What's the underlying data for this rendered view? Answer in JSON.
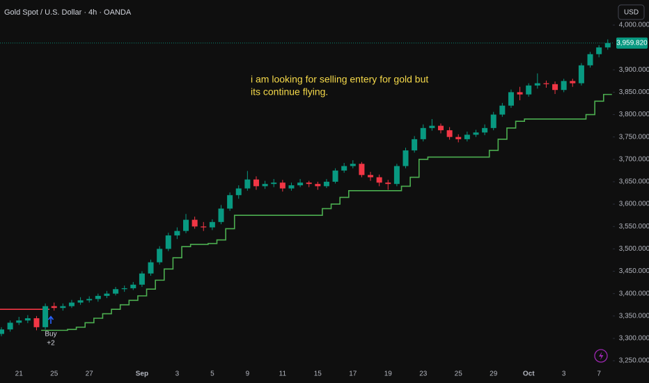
{
  "header": {
    "symbol": "Gold Spot / U.S. Dollar · 4h · OANDA",
    "currency": "USD"
  },
  "chart_data": {
    "type": "candlestick",
    "categories": [
      null,
      null,
      "21",
      null,
      null,
      null,
      "25",
      null,
      null,
      null,
      "27",
      null,
      null,
      null,
      null,
      null,
      "Sep",
      null,
      null,
      null,
      "3",
      null,
      null,
      null,
      "5",
      null,
      null,
      null,
      "9",
      null,
      null,
      null,
      "11",
      null,
      null,
      null,
      "15",
      null,
      null,
      null,
      "17",
      null,
      null,
      null,
      "19",
      null,
      null,
      null,
      "23",
      null,
      null,
      null,
      "25",
      null,
      null,
      null,
      "29",
      null,
      null,
      null,
      "Oct",
      null,
      null,
      null,
      "3",
      null,
      null,
      null,
      "7",
      null
    ],
    "open": [
      3310,
      3320,
      3335,
      3340,
      3345,
      3325,
      3372,
      3368,
      3372,
      3380,
      3385,
      3388,
      3395,
      3400,
      3410,
      3412,
      3420,
      3445,
      3470,
      3500,
      3530,
      3540,
      3565,
      3550,
      3548,
      3560,
      3590,
      3620,
      3635,
      3655,
      3640,
      3645,
      3648,
      3635,
      3642,
      3648,
      3645,
      3640,
      3650,
      3675,
      3685,
      3690,
      3665,
      3660,
      3648,
      3645,
      3685,
      3720,
      3745,
      3770,
      3775,
      3765,
      3750,
      3745,
      3755,
      3760,
      3770,
      3800,
      3820,
      3850,
      3845,
      3865,
      3870,
      3868,
      3855,
      3875,
      3870,
      3910,
      3935,
      3950
    ],
    "high": [
      3325,
      3340,
      3348,
      3352,
      3350,
      3378,
      3380,
      3378,
      3386,
      3392,
      3394,
      3400,
      3406,
      3415,
      3418,
      3426,
      3450,
      3476,
      3506,
      3536,
      3548,
      3578,
      3572,
      3560,
      3566,
      3598,
      3626,
      3642,
      3674,
      3662,
      3652,
      3656,
      3654,
      3648,
      3656,
      3652,
      3650,
      3656,
      3680,
      3692,
      3698,
      3694,
      3672,
      3666,
      3654,
      3690,
      3726,
      3752,
      3778,
      3790,
      3780,
      3772,
      3756,
      3762,
      3766,
      3778,
      3806,
      3826,
      3856,
      3862,
      3870,
      3892,
      3876,
      3874,
      3880,
      3880,
      3915,
      3940,
      3955,
      3968
    ],
    "low": [
      3305,
      3315,
      3330,
      3334,
      3318,
      3320,
      3362,
      3362,
      3368,
      3375,
      3380,
      3382,
      3390,
      3396,
      3404,
      3408,
      3415,
      3440,
      3465,
      3495,
      3522,
      3535,
      3545,
      3540,
      3542,
      3555,
      3585,
      3612,
      3630,
      3632,
      3634,
      3638,
      3628,
      3630,
      3638,
      3638,
      3632,
      3636,
      3646,
      3670,
      3680,
      3660,
      3652,
      3640,
      3632,
      3640,
      3680,
      3715,
      3740,
      3764,
      3758,
      3744,
      3738,
      3740,
      3750,
      3754,
      3765,
      3795,
      3815,
      3832,
      3840,
      3858,
      3860,
      3846,
      3850,
      3862,
      3865,
      3905,
      3928,
      3945
    ],
    "close": [
      3320,
      3335,
      3340,
      3345,
      3325,
      3372,
      3368,
      3372,
      3380,
      3385,
      3388,
      3395,
      3400,
      3410,
      3412,
      3420,
      3445,
      3470,
      3500,
      3530,
      3540,
      3565,
      3550,
      3548,
      3560,
      3590,
      3620,
      3635,
      3655,
      3640,
      3645,
      3648,
      3635,
      3642,
      3648,
      3645,
      3640,
      3650,
      3675,
      3685,
      3690,
      3665,
      3660,
      3648,
      3645,
      3685,
      3720,
      3745,
      3770,
      3775,
      3765,
      3750,
      3745,
      3755,
      3760,
      3770,
      3800,
      3820,
      3850,
      3845,
      3865,
      3870,
      3868,
      3855,
      3875,
      3870,
      3910,
      3935,
      3950,
      3959.82
    ],
    "up_color": "#089981",
    "down_color": "#f23645",
    "overlays": [
      {
        "color": "#4caf50",
        "values": [
          null,
          null,
          null,
          null,
          null,
          3318,
          3318,
          3318,
          3320,
          3325,
          3335,
          3345,
          3355,
          3365,
          3375,
          3385,
          3395,
          3410,
          3430,
          3455,
          3480,
          3505,
          3510,
          3510,
          3512,
          3520,
          3545,
          3575,
          3575,
          3575,
          3575,
          3575,
          3575,
          3575,
          3575,
          3575,
          3575,
          3590,
          3600,
          3615,
          3630,
          3630,
          3630,
          3630,
          3630,
          3630,
          3640,
          3660,
          3700,
          3705,
          3705,
          3705,
          3705,
          3705,
          3705,
          3705,
          3720,
          3745,
          3770,
          3785,
          3790,
          3790,
          3790,
          3790,
          3790,
          3790,
          3790,
          3800,
          3830,
          3845
        ]
      },
      {
        "color": "#f23645",
        "values": [
          3365,
          3365,
          3365,
          3365,
          3365,
          3365,
          null,
          null,
          null,
          null,
          null,
          null,
          null,
          null,
          null,
          null,
          null,
          null,
          null,
          null,
          null,
          null,
          null,
          null,
          null,
          null,
          null,
          null,
          null,
          null,
          null,
          null,
          null,
          null,
          null,
          null,
          null,
          null,
          null,
          null,
          null,
          null,
          null,
          null,
          null,
          null,
          null,
          null,
          null,
          null,
          null,
          null,
          null,
          null,
          null,
          null,
          null,
          null,
          null,
          null,
          null,
          null,
          null,
          null,
          null,
          null,
          null,
          null,
          null,
          null
        ]
      }
    ],
    "ylim": [
      3247,
      4056
    ],
    "yticks": [
      {
        "value": 3250,
        "label": "3,250.000"
      },
      {
        "value": 3300,
        "label": "3,300.000"
      },
      {
        "value": 3350,
        "label": "3,350.000"
      },
      {
        "value": 3400,
        "label": "3,400.000"
      },
      {
        "value": 3450,
        "label": "3,450.000"
      },
      {
        "value": 3500,
        "label": "3,500.000"
      },
      {
        "value": 3550,
        "label": "3,550.000"
      },
      {
        "value": 3600,
        "label": "3,600.000"
      },
      {
        "value": 3650,
        "label": "3,650.000"
      },
      {
        "value": 3700,
        "label": "3,700.000"
      },
      {
        "value": 3750,
        "label": "3,750.000"
      },
      {
        "value": 3800,
        "label": "3,800.000"
      },
      {
        "value": 3850,
        "label": "3,850.000"
      },
      {
        "value": 3900,
        "label": "3,900.000"
      },
      {
        "value": 4000,
        "label": "4,000.000"
      }
    ],
    "last_price": {
      "value": 3959.82,
      "label": "3,959.820"
    },
    "annotation": [
      "i am looking for selling entery for gold but",
      "its continue flying."
    ],
    "signal": {
      "label": "Buy",
      "qty": "+2"
    }
  }
}
